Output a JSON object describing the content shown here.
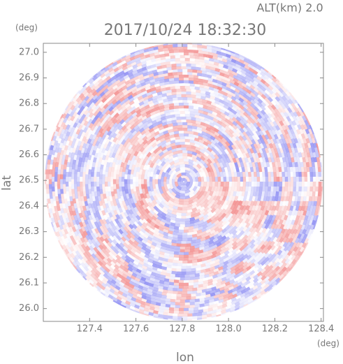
{
  "chart_data": {
    "type": "radar-ppi",
    "title": "2017/10/24 18:32:30",
    "subtitle": "ALT(km) 2.0",
    "x_label": "lon",
    "y_label": "lat",
    "x_unit": "(deg)",
    "y_unit": "(deg)",
    "xlim": [
      127.2,
      128.41
    ],
    "ylim": [
      25.95,
      27.035
    ],
    "xticks": [
      127.4,
      127.6,
      127.8,
      {
        "value": 128.0,
        "label": "128.0"
      },
      128.2,
      128.4
    ],
    "yticks": [
      {
        "value": 26.0,
        "label": "26.0"
      },
      26.1,
      26.2,
      26.3,
      26.4,
      26.5,
      26.6,
      26.7,
      26.8,
      26.9,
      {
        "value": 27.0,
        "label": "27.0"
      }
    ],
    "colors": [
      "#f07878",
      "#7878f0"
    ]
  }
}
